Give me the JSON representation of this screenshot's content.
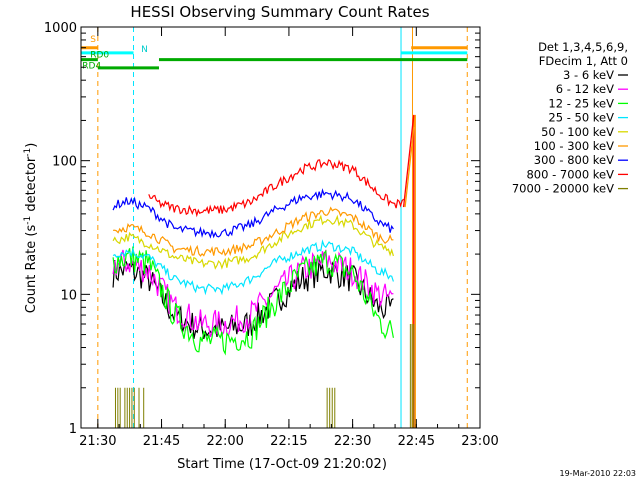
{
  "chart_data": {
    "type": "line",
    "title": "HESSI Observing Summary Count Rates",
    "xlabel": "Start Time (17-Oct-09 21:20:02)",
    "ylabel_main": "Count Rate (s",
    "ylabel_sup1": "-1",
    "ylabel_mid": " detector",
    "ylabel_sup2": "-1",
    "ylabel_end": ")",
    "yscale": "log",
    "ylim": [
      1,
      1000
    ],
    "xlim": [
      21.4339,
      23.0
    ],
    "x_tick_labels": [
      "21:30",
      "21:45",
      "22:00",
      "22:15",
      "22:30",
      "22:45",
      "23:00"
    ],
    "x_tick_values": [
      21.5,
      21.75,
      22.0,
      22.25,
      22.5,
      22.75,
      23.0
    ],
    "y_tick_labels": [
      "1",
      "10",
      "100",
      "1000"
    ],
    "y_tick_values": [
      1,
      10,
      100,
      1000
    ],
    "legend_header": [
      "Det 1,3,4,5,6,9,",
      "FDecim 1, Att 0"
    ],
    "legend_placement": "right",
    "series": [
      {
        "name": "3 - 6 keV",
        "color": "#000000",
        "pts": [
          [
            21.56,
            14.5
          ],
          [
            21.62,
            15.5
          ],
          [
            21.7,
            13.0
          ],
          [
            21.8,
            7.0
          ],
          [
            21.9,
            5.5
          ],
          [
            22.0,
            5.5
          ],
          [
            22.1,
            6.0
          ],
          [
            22.2,
            9.0
          ],
          [
            22.3,
            13.0
          ],
          [
            22.4,
            15.5
          ],
          [
            22.5,
            13.0
          ],
          [
            22.6,
            8.0
          ],
          [
            22.66,
            7.5
          ]
        ]
      },
      {
        "name": "6 - 12 keV",
        "color": "#ff00ff",
        "pts": [
          [
            21.56,
            16.5
          ],
          [
            21.62,
            17.5
          ],
          [
            21.7,
            15.0
          ],
          [
            21.8,
            8.0
          ],
          [
            21.9,
            6.0
          ],
          [
            22.0,
            6.0
          ],
          [
            22.1,
            7.0
          ],
          [
            22.2,
            10.5
          ],
          [
            22.3,
            15.0
          ],
          [
            22.4,
            18.0
          ],
          [
            22.5,
            15.0
          ],
          [
            22.6,
            10.0
          ],
          [
            22.66,
            9.0
          ]
        ]
      },
      {
        "name": "12 - 25 keV",
        "color": "#00ff00",
        "pts": [
          [
            21.56,
            18.0
          ],
          [
            21.62,
            19.0
          ],
          [
            21.7,
            17.0
          ],
          [
            21.8,
            7.0
          ],
          [
            21.9,
            4.5
          ],
          [
            22.0,
            4.5
          ],
          [
            22.1,
            5.0
          ],
          [
            22.2,
            9.0
          ],
          [
            22.3,
            14.5
          ],
          [
            22.4,
            18.0
          ],
          [
            22.5,
            14.5
          ],
          [
            22.6,
            6.5
          ],
          [
            22.66,
            5.0
          ]
        ]
      },
      {
        "name": "25 - 50 keV",
        "color": "#00e5ff",
        "pts": [
          [
            21.56,
            20.0
          ],
          [
            21.62,
            21.0
          ],
          [
            21.7,
            19.0
          ],
          [
            21.8,
            13.0
          ],
          [
            21.9,
            11.0
          ],
          [
            22.0,
            11.0
          ],
          [
            22.1,
            13.0
          ],
          [
            22.2,
            17.5
          ],
          [
            22.3,
            21.0
          ],
          [
            22.4,
            23.5
          ],
          [
            22.5,
            21.0
          ],
          [
            22.6,
            15.0
          ],
          [
            22.66,
            13.5
          ]
        ]
      },
      {
        "name": "50 - 100 keV",
        "color": "#d8d800",
        "pts": [
          [
            21.56,
            25.0
          ],
          [
            21.62,
            27.0
          ],
          [
            21.7,
            24.0
          ],
          [
            21.8,
            19.0
          ],
          [
            21.9,
            17.0
          ],
          [
            22.0,
            17.0
          ],
          [
            22.1,
            19.0
          ],
          [
            22.2,
            25.0
          ],
          [
            22.3,
            32.0
          ],
          [
            22.4,
            37.0
          ],
          [
            22.5,
            33.0
          ],
          [
            22.6,
            23.0
          ],
          [
            22.66,
            21.0
          ]
        ]
      },
      {
        "name": "100 - 300 keV",
        "color": "#ff9900",
        "pts": [
          [
            21.56,
            30.0
          ],
          [
            21.62,
            32.0
          ],
          [
            21.7,
            29.0
          ],
          [
            21.8,
            22.0
          ],
          [
            21.9,
            21.0
          ],
          [
            22.0,
            21.0
          ],
          [
            22.1,
            23.0
          ],
          [
            22.2,
            29.0
          ],
          [
            22.3,
            37.0
          ],
          [
            22.4,
            42.0
          ],
          [
            22.5,
            38.0
          ],
          [
            22.6,
            27.0
          ],
          [
            22.66,
            25.0
          ]
        ]
      },
      {
        "name": "300 - 800 keV",
        "color": "#0000ff",
        "pts": [
          [
            21.56,
            46.0
          ],
          [
            21.62,
            50.0
          ],
          [
            21.7,
            44.0
          ],
          [
            21.8,
            31.0
          ],
          [
            21.9,
            29.0
          ],
          [
            22.0,
            29.0
          ],
          [
            22.1,
            33.0
          ],
          [
            22.2,
            43.0
          ],
          [
            22.3,
            53.0
          ],
          [
            22.4,
            57.0
          ],
          [
            22.5,
            52.0
          ],
          [
            22.6,
            35.0
          ],
          [
            22.66,
            30.0
          ]
        ]
      },
      {
        "name": "800 - 7000 keV",
        "color": "#ff0000",
        "pts": [
          [
            21.7,
            55.0
          ],
          [
            21.74,
            48.0
          ],
          [
            21.8,
            44.0
          ],
          [
            21.9,
            42.0
          ],
          [
            22.0,
            43.0
          ],
          [
            22.1,
            49.0
          ],
          [
            22.2,
            66.0
          ],
          [
            22.3,
            86.0
          ],
          [
            22.4,
            97.0
          ],
          [
            22.5,
            87.0
          ],
          [
            22.6,
            57.0
          ],
          [
            22.66,
            47.0
          ],
          [
            22.7,
            48.0
          ]
        ]
      },
      {
        "name": "7000 - 20000 keV",
        "color": "#7f7f00",
        "pts": []
      }
    ],
    "spike": {
      "x_start": 22.7,
      "x_peak": 22.74,
      "y_start": 45,
      "y_peak": 220
    },
    "spike_colors": [
      "#ff0000",
      "#ff9900"
    ],
    "bar_segments": [
      {
        "x0": 21.434,
        "x1": 21.5,
        "y": 700,
        "color": "#ff9900"
      },
      {
        "x0": 22.73,
        "x1": 22.95,
        "y": 700,
        "color": "#ff9900"
      },
      {
        "x0": 21.434,
        "x1": 21.64,
        "y": 640,
        "color": "#00ffff"
      },
      {
        "x0": 22.69,
        "x1": 22.95,
        "y": 640,
        "color": "#00ffff"
      },
      {
        "x0": 21.434,
        "x1": 21.5,
        "y": 570,
        "color": "#00aa00"
      },
      {
        "x0": 21.5,
        "x1": 21.74,
        "y": 495,
        "color": "#00aa00"
      },
      {
        "x0": 21.74,
        "x1": 22.95,
        "y": 570,
        "color": "#00aa00"
      }
    ],
    "bar_labels": [
      {
        "text": "S",
        "x": 21.47,
        "y": 770,
        "color": "#ff9900"
      },
      {
        "text": "N",
        "x": 21.67,
        "y": 650,
        "color": "#00cccc"
      },
      {
        "text": "RD0",
        "x": 21.47,
        "y": 590,
        "color": "#00aa00"
      },
      {
        "text": "RD4",
        "x": 21.439,
        "y": 490,
        "color": "#00aa00"
      }
    ],
    "vlines": [
      {
        "x": 21.5,
        "color": "#ff9900",
        "dashed": true
      },
      {
        "x": 21.64,
        "color": "#00e5ff",
        "dashed": true
      },
      {
        "x": 22.69,
        "color": "#00e5ff",
        "dashed": false
      },
      {
        "x": 22.735,
        "color": "#ff9900",
        "dashed": false
      },
      {
        "x": 22.95,
        "color": "#ff9900",
        "dashed": true
      }
    ],
    "bottom_spikes": [
      {
        "x0": 21.56,
        "x1": 21.68,
        "y_top": 2.0,
        "color": "#7f7f00"
      },
      {
        "x0": 22.38,
        "x1": 22.43,
        "y_top": 2.0,
        "color": "#7f7f00"
      },
      {
        "x0": 22.72,
        "x1": 22.74,
        "y_top": 6.0,
        "color": "#7f7f00"
      }
    ],
    "footer": "19-Mar-2010 22:03"
  }
}
